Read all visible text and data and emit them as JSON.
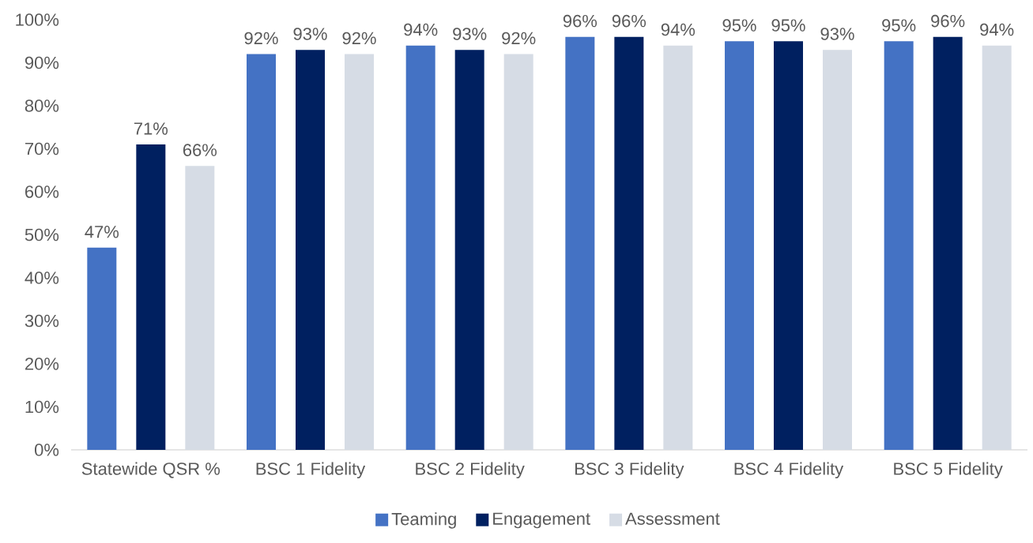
{
  "chart_data": {
    "type": "bar",
    "categories": [
      "Statewide QSR %",
      "BSC 1 Fidelity",
      "BSC 2 Fidelity",
      "BSC 3 Fidelity",
      "BSC 4 Fidelity",
      "BSC 5 Fidelity"
    ],
    "series": [
      {
        "name": "Teaming",
        "color": "#4472c4",
        "values": [
          47,
          92,
          94,
          96,
          95,
          95
        ],
        "value_labels": [
          "47%",
          "92%",
          "94%",
          "96%",
          "95%",
          "95%"
        ]
      },
      {
        "name": "Engagement",
        "color": "#002060",
        "values": [
          71,
          93,
          93,
          96,
          95,
          96
        ],
        "value_labels": [
          "71%",
          "93%",
          "93%",
          "96%",
          "95%",
          "96%"
        ]
      },
      {
        "name": "Assessment",
        "color": "#d6dce5",
        "values": [
          66,
          92,
          92,
          94,
          93,
          94
        ],
        "value_labels": [
          "66%",
          "92%",
          "92%",
          "94%",
          "93%",
          "94%"
        ]
      }
    ],
    "ylim": [
      0,
      100
    ],
    "yticks": [
      {
        "value": 0,
        "label": "0%"
      },
      {
        "value": 10,
        "label": "10%"
      },
      {
        "value": 20,
        "label": "20%"
      },
      {
        "value": 30,
        "label": "30%"
      },
      {
        "value": 40,
        "label": "40%"
      },
      {
        "value": 50,
        "label": "50%"
      },
      {
        "value": 60,
        "label": "60%"
      },
      {
        "value": 70,
        "label": "70%"
      },
      {
        "value": 80,
        "label": "80%"
      },
      {
        "value": 90,
        "label": "90%"
      },
      {
        "value": 100,
        "label": "100%"
      }
    ],
    "grid": false,
    "legend": "bottom"
  }
}
